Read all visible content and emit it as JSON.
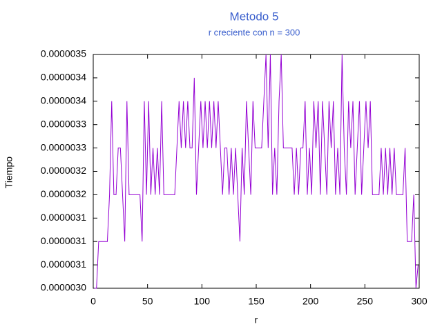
{
  "chart_data": {
    "type": "line",
    "title": "Metodo 5",
    "subtitle": "r creciente con n = 300",
    "x_label": "r",
    "y_label": "Tiempo",
    "color": "#9400d3",
    "xlim": [
      0,
      300
    ],
    "xticks": [
      0,
      50,
      100,
      150,
      200,
      250,
      300
    ],
    "ylim": [
      3e-06,
      3.5e-06
    ],
    "yticks": [
      {
        "value": 3e-06,
        "label": "0.0000030"
      },
      {
        "value": 3.05e-06,
        "label": "0.0000031"
      },
      {
        "value": 3.1e-06,
        "label": "0.0000031"
      },
      {
        "value": 3.15e-06,
        "label": "0.0000031"
      },
      {
        "value": 3.2e-06,
        "label": "0.0000032"
      },
      {
        "value": 3.25e-06,
        "label": "0.0000032"
      },
      {
        "value": 3.3e-06,
        "label": "0.0000033"
      },
      {
        "value": 3.35e-06,
        "label": "0.0000033"
      },
      {
        "value": 3.4e-06,
        "label": "0.0000034"
      },
      {
        "value": 3.45e-06,
        "label": "0.0000034"
      },
      {
        "value": 3.5e-06,
        "label": "0.0000035"
      }
    ],
    "x": [
      1,
      3,
      5,
      7,
      9,
      11,
      13,
      15,
      17,
      19,
      21,
      23,
      25,
      27,
      29,
      31,
      33,
      35,
      37,
      39,
      41,
      43,
      45,
      47,
      49,
      51,
      53,
      55,
      57,
      59,
      61,
      63,
      65,
      67,
      69,
      71,
      73,
      75,
      77,
      79,
      81,
      83,
      85,
      87,
      89,
      91,
      93,
      95,
      97,
      99,
      101,
      103,
      105,
      107,
      109,
      111,
      113,
      115,
      117,
      119,
      121,
      123,
      125,
      127,
      129,
      131,
      133,
      135,
      137,
      139,
      141,
      143,
      145,
      147,
      149,
      151,
      153,
      155,
      157,
      159,
      161,
      163,
      165,
      167,
      169,
      171,
      173,
      175,
      177,
      179,
      181,
      183,
      185,
      187,
      189,
      191,
      193,
      195,
      197,
      199,
      201,
      203,
      205,
      207,
      209,
      211,
      213,
      215,
      217,
      219,
      221,
      223,
      225,
      227,
      229,
      231,
      233,
      235,
      237,
      239,
      241,
      243,
      245,
      247,
      249,
      251,
      253,
      255,
      257,
      259,
      261,
      263,
      265,
      267,
      269,
      271,
      273,
      275,
      277,
      279,
      281,
      283,
      285,
      287,
      289,
      291,
      293,
      295,
      297,
      299
    ],
    "values": [
      3e-06,
      3e-06,
      3.1e-06,
      3.1e-06,
      3.1e-06,
      3.1e-06,
      3.1e-06,
      3.2e-06,
      3.4e-06,
      3.2e-06,
      3.2e-06,
      3.3e-06,
      3.3e-06,
      3.2e-06,
      3.1e-06,
      3.4e-06,
      3.2e-06,
      3.2e-06,
      3.2e-06,
      3.2e-06,
      3.2e-06,
      3.2e-06,
      3.1e-06,
      3.4e-06,
      3.2e-06,
      3.4e-06,
      3.2e-06,
      3.3e-06,
      3.2e-06,
      3.3e-06,
      3.2e-06,
      3.4e-06,
      3.2e-06,
      3.2e-06,
      3.2e-06,
      3.2e-06,
      3.2e-06,
      3.2e-06,
      3.3e-06,
      3.4e-06,
      3.3e-06,
      3.4e-06,
      3.3e-06,
      3.4e-06,
      3.3e-06,
      3.3e-06,
      3.45e-06,
      3.2e-06,
      3.3e-06,
      3.4e-06,
      3.3e-06,
      3.4e-06,
      3.3e-06,
      3.4e-06,
      3.3e-06,
      3.4e-06,
      3.3e-06,
      3.4e-06,
      3.3e-06,
      3.2e-06,
      3.3e-06,
      3.3e-06,
      3.2e-06,
      3.3e-06,
      3.2e-06,
      3.3e-06,
      3.2e-06,
      3.1e-06,
      3.3e-06,
      3.2e-06,
      3.4e-06,
      3.3e-06,
      3.2e-06,
      3.4e-06,
      3.3e-06,
      3.3e-06,
      3.3e-06,
      3.3e-06,
      3.4e-06,
      3.5e-06,
      3.3e-06,
      3.5e-06,
      3.2e-06,
      3.3e-06,
      3.2e-06,
      3.4e-06,
      3.5e-06,
      3.3e-06,
      3.3e-06,
      3.3e-06,
      3.3e-06,
      3.3e-06,
      3.2e-06,
      3.3e-06,
      3.2e-06,
      3.3e-06,
      3.3e-06,
      3.4e-06,
      3.2e-06,
      3.3e-06,
      3.2e-06,
      3.4e-06,
      3.3e-06,
      3.4e-06,
      3.2e-06,
      3.4e-06,
      3.3e-06,
      3.2e-06,
      3.4e-06,
      3.3e-06,
      3.4e-06,
      3.2e-06,
      3.3e-06,
      3.2e-06,
      3.5e-06,
      3.3e-06,
      3.2e-06,
      3.4e-06,
      3.3e-06,
      3.4e-06,
      3.2e-06,
      3.3e-06,
      3.4e-06,
      3.2e-06,
      3.3e-06,
      3.4e-06,
      3.3e-06,
      3.4e-06,
      3.2e-06,
      3.2e-06,
      3.2e-06,
      3.2e-06,
      3.3e-06,
      3.2e-06,
      3.3e-06,
      3.2e-06,
      3.3e-06,
      3.2e-06,
      3.3e-06,
      3.2e-06,
      3.2e-06,
      3.2e-06,
      3.2e-06,
      3.3e-06,
      3.1e-06,
      3.1e-06,
      3.1e-06,
      3.2e-06,
      3e-06,
      3.05e-06
    ]
  }
}
